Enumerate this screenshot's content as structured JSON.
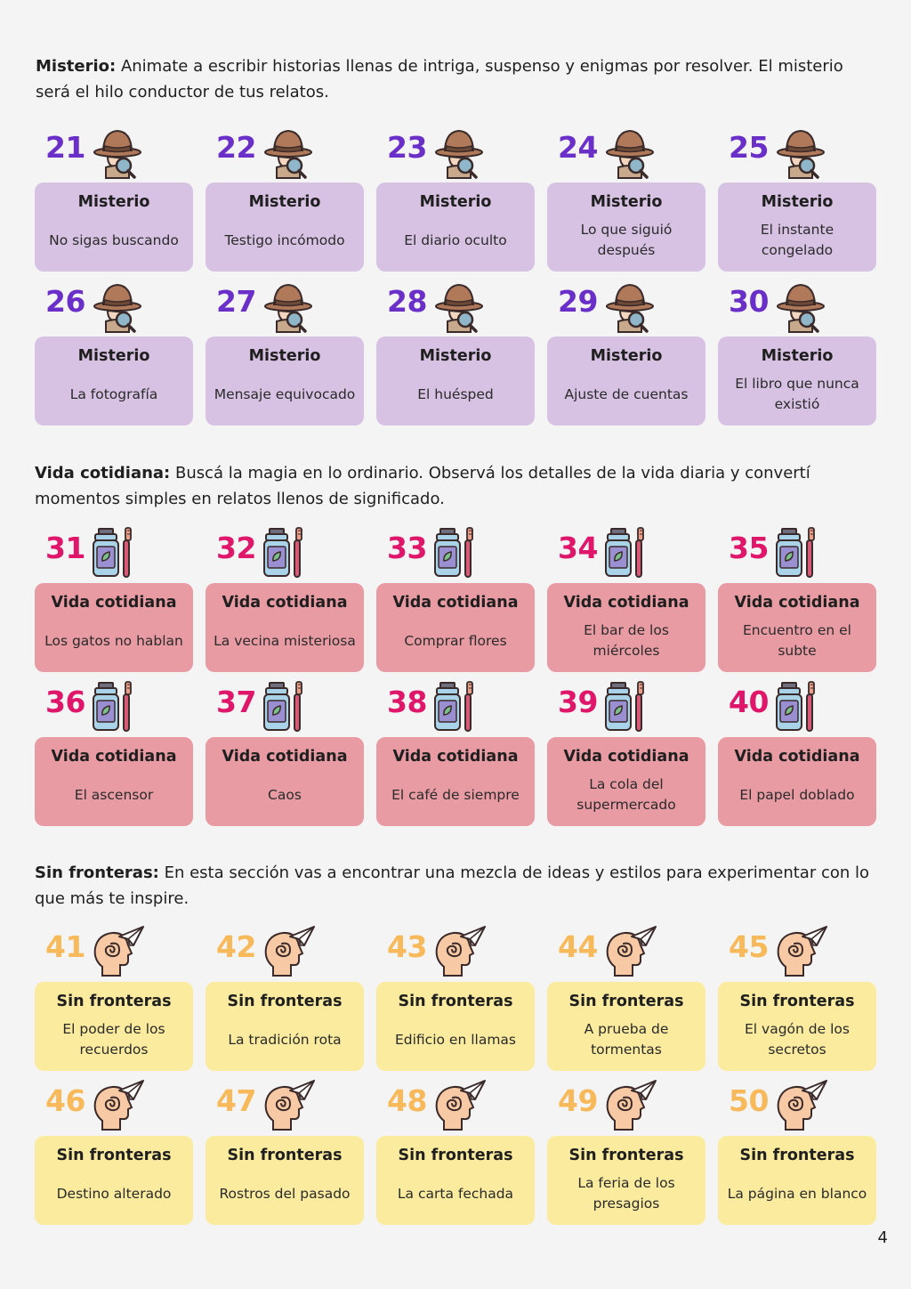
{
  "colors": {
    "misterio_card": "#d7c2e4",
    "misterio_number": "#6b2fc9",
    "vida_card": "#e99ba3",
    "vida_number": "#e0166a",
    "sin_card": "#fbeb9f",
    "sin_number": "#f8b95a"
  },
  "sections": [
    {
      "key": "misterio",
      "intro_bold": "Misterio:",
      "intro_text": " Animate a escribir historias llenas de intriga, suspenso y enigmas por resolver. El misterio será el hilo conductor de tus relatos.",
      "icon": "detective-icon",
      "cards": [
        {
          "number": "21",
          "title": "Misterio",
          "prompt": "No sigas buscando"
        },
        {
          "number": "22",
          "title": "Misterio",
          "prompt": "Testigo incómodo"
        },
        {
          "number": "23",
          "title": "Misterio",
          "prompt": "El diario oculto"
        },
        {
          "number": "24",
          "title": "Misterio",
          "prompt": "Lo que siguió después"
        },
        {
          "number": "25",
          "title": "Misterio",
          "prompt": "El instante congelado"
        },
        {
          "number": "26",
          "title": "Misterio",
          "prompt": "La fotografía"
        },
        {
          "number": "27",
          "title": "Misterio",
          "prompt": "Mensaje equivocado"
        },
        {
          "number": "28",
          "title": "Misterio",
          "prompt": "El huésped"
        },
        {
          "number": "29",
          "title": "Misterio",
          "prompt": "Ajuste de cuentas"
        },
        {
          "number": "30",
          "title": "Misterio",
          "prompt": "El libro que nunca existió"
        }
      ]
    },
    {
      "key": "vida",
      "intro_bold": "Vida cotidiana:",
      "intro_text": " Buscá la magia en lo ordinario. Observá los detalles de la vida diaria y convertí momentos simples en relatos llenos de significado.",
      "icon": "mouthwash-toothbrush-icon",
      "cards": [
        {
          "number": "31",
          "title": "Vida cotidiana",
          "prompt": "Los gatos no hablan"
        },
        {
          "number": "32",
          "title": "Vida cotidiana",
          "prompt": "La vecina misteriosa"
        },
        {
          "number": "33",
          "title": "Vida cotidiana",
          "prompt": "Comprar flores"
        },
        {
          "number": "34",
          "title": "Vida cotidiana",
          "prompt": "El bar de los miércoles"
        },
        {
          "number": "35",
          "title": "Vida cotidiana",
          "prompt": "Encuentro en el subte"
        },
        {
          "number": "36",
          "title": "Vida cotidiana",
          "prompt": "El ascensor"
        },
        {
          "number": "37",
          "title": "Vida cotidiana",
          "prompt": "Caos"
        },
        {
          "number": "38",
          "title": "Vida cotidiana",
          "prompt": "El café de siempre"
        },
        {
          "number": "39",
          "title": "Vida cotidiana",
          "prompt": "La cola del supermercado"
        },
        {
          "number": "40",
          "title": "Vida cotidiana",
          "prompt": "El papel doblado"
        }
      ]
    },
    {
      "key": "sin",
      "intro_bold": "Sin fronteras:",
      "intro_text": " En esta sección vas a encontrar una mezcla de ideas y estilos para experimentar con lo que más te inspire.",
      "icon": "head-paper-plane-icon",
      "cards": [
        {
          "number": "41",
          "title": "Sin fronteras",
          "prompt": "El poder de los recuerdos"
        },
        {
          "number": "42",
          "title": "Sin fronteras",
          "prompt": "La tradición rota"
        },
        {
          "number": "43",
          "title": "Sin fronteras",
          "prompt": "Edificio en llamas"
        },
        {
          "number": "44",
          "title": "Sin fronteras",
          "prompt": "A prueba de tormentas"
        },
        {
          "number": "45",
          "title": "Sin fronteras",
          "prompt": "El vagón de los secretos"
        },
        {
          "number": "46",
          "title": "Sin fronteras",
          "prompt": "Destino alterado"
        },
        {
          "number": "47",
          "title": "Sin fronteras",
          "prompt": "Rostros del pasado"
        },
        {
          "number": "48",
          "title": "Sin fronteras",
          "prompt": "La carta fechada"
        },
        {
          "number": "49",
          "title": "Sin fronteras",
          "prompt": "La feria de los presagios"
        },
        {
          "number": "50",
          "title": "Sin fronteras",
          "prompt": "La página en blanco"
        }
      ]
    }
  ],
  "page_number": "4"
}
